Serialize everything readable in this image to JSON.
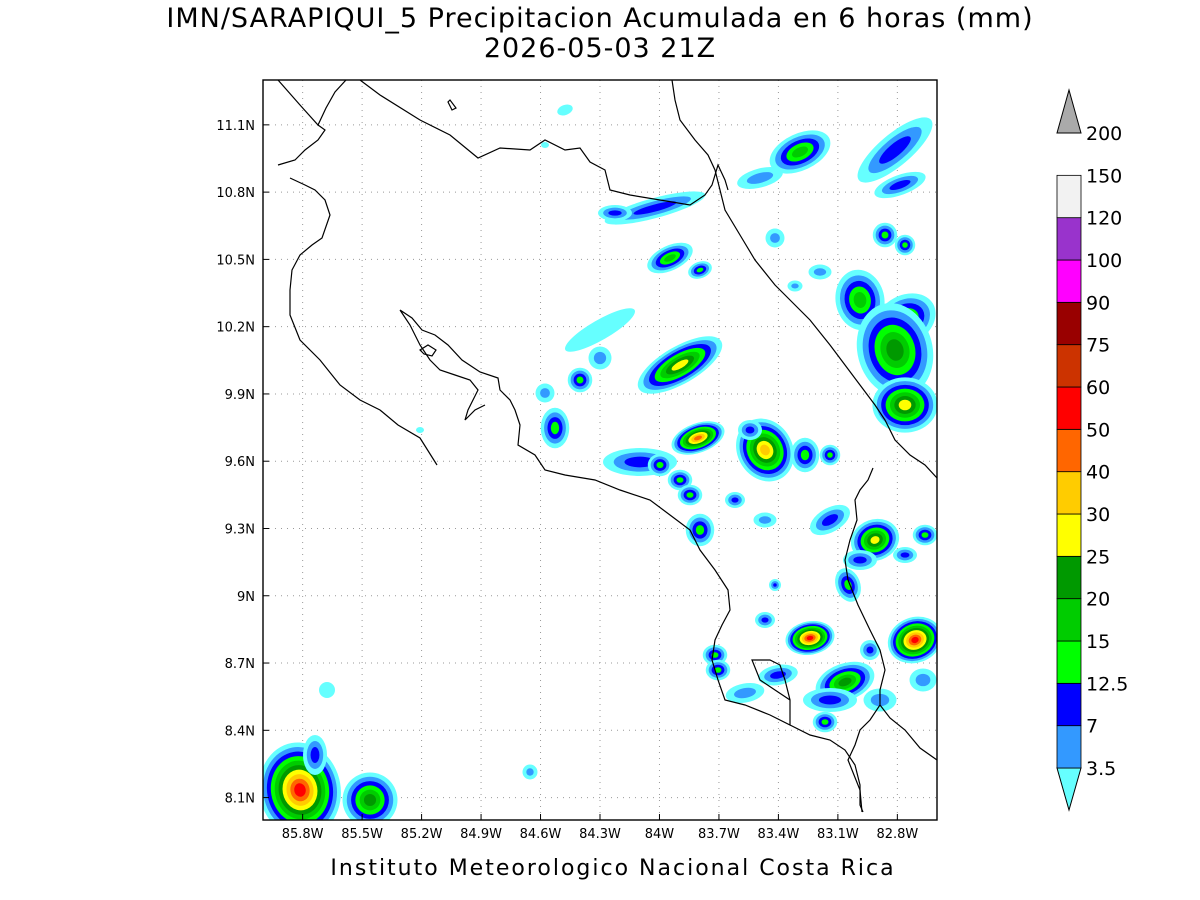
{
  "title": {
    "line1": "IMN/SARAPIQUI_5 Precipitacion Acumulada en 6 horas (mm)",
    "line2": "2026-05-03 21Z"
  },
  "footer": "Instituto Meteorologico Nacional Costa Rica",
  "map": {
    "lon_range": [
      -86.0,
      -82.6
    ],
    "lat_range": [
      8.0,
      11.3
    ],
    "lon_ticks": [
      {
        "value": -85.8,
        "label": "85.8W"
      },
      {
        "value": -85.5,
        "label": "85.5W"
      },
      {
        "value": -85.2,
        "label": "85.2W"
      },
      {
        "value": -84.9,
        "label": "84.9W"
      },
      {
        "value": -84.6,
        "label": "84.6W"
      },
      {
        "value": -84.3,
        "label": "84.3W"
      },
      {
        "value": -84.0,
        "label": "84W"
      },
      {
        "value": -83.7,
        "label": "83.7W"
      },
      {
        "value": -83.4,
        "label": "83.4W"
      },
      {
        "value": -83.1,
        "label": "83.1W"
      },
      {
        "value": -82.8,
        "label": "82.8W"
      }
    ],
    "lat_ticks": [
      {
        "value": 8.1,
        "label": "8.1N"
      },
      {
        "value": 8.4,
        "label": "8.4N"
      },
      {
        "value": 8.7,
        "label": "8.7N"
      },
      {
        "value": 9.0,
        "label": "9N"
      },
      {
        "value": 9.3,
        "label": "9.3N"
      },
      {
        "value": 9.6,
        "label": "9.6N"
      },
      {
        "value": 9.9,
        "label": "9.9N"
      },
      {
        "value": 10.2,
        "label": "10.2N"
      },
      {
        "value": 10.5,
        "label": "10.5N"
      },
      {
        "value": 10.8,
        "label": "10.8N"
      },
      {
        "value": 11.1,
        "label": "11.1N"
      }
    ],
    "gridlines": "dotted"
  },
  "colorbar": {
    "bins": [
      {
        "label": "3.5",
        "color": "#66ffff"
      },
      {
        "label": "7",
        "color": "#3399ff"
      },
      {
        "label": "12.5",
        "color": "#0000ff"
      },
      {
        "label": "15",
        "color": "#00ff00"
      },
      {
        "label": "20",
        "color": "#00cc00"
      },
      {
        "label": "25",
        "color": "#009900"
      },
      {
        "label": "30",
        "color": "#ffff00"
      },
      {
        "label": "40",
        "color": "#ffcc00"
      },
      {
        "label": "50",
        "color": "#ff6600"
      },
      {
        "label": "60",
        "color": "#ff0000"
      },
      {
        "label": "75",
        "color": "#cc3300"
      },
      {
        "label": "90",
        "color": "#990000"
      },
      {
        "label": "100",
        "color": "#ff00ff"
      },
      {
        "label": "120",
        "color": "#9933cc"
      },
      {
        "label": "150",
        "color": "#f2f2f2"
      },
      {
        "label": "200",
        "color": "#aaaaaa"
      }
    ]
  }
}
